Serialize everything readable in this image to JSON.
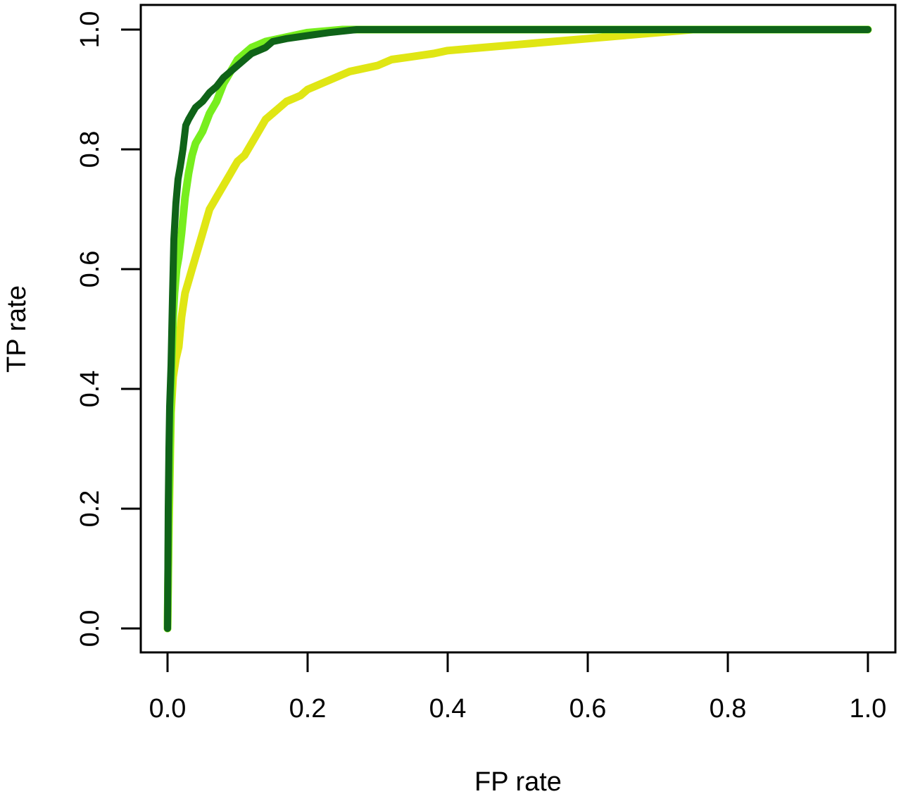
{
  "chart_data": {
    "type": "line",
    "title": "",
    "xlabel": "FP rate",
    "ylabel": "TP rate",
    "xlim": [
      0.0,
      1.0
    ],
    "ylim": [
      0.0,
      1.0
    ],
    "xticks": [
      0.0,
      0.2,
      0.4,
      0.6,
      0.8,
      1.0
    ],
    "yticks": [
      0.0,
      0.2,
      0.4,
      0.6,
      0.8,
      1.0
    ],
    "xtick_labels": [
      "0.0",
      "0.2",
      "0.4",
      "0.6",
      "0.8",
      "1.0"
    ],
    "ytick_labels": [
      "0.0",
      "0.2",
      "0.4",
      "0.6",
      "0.8",
      "1.0"
    ],
    "grid": false,
    "legend": "none",
    "series": [
      {
        "color": "#e0e614",
        "x": [
          0.0,
          0.002,
          0.005,
          0.008,
          0.012,
          0.016,
          0.02,
          0.025,
          0.03,
          0.035,
          0.04,
          0.045,
          0.05,
          0.055,
          0.06,
          0.065,
          0.07,
          0.08,
          0.09,
          0.095,
          0.1,
          0.11,
          0.12,
          0.13,
          0.14,
          0.15,
          0.16,
          0.17,
          0.18,
          0.19,
          0.2,
          0.22,
          0.24,
          0.26,
          0.28,
          0.3,
          0.32,
          0.35,
          0.38,
          0.4,
          0.45,
          0.5,
          0.55,
          0.6,
          0.65,
          0.7,
          0.75,
          0.8,
          0.9,
          1.0
        ],
        "y": [
          0.0,
          0.17,
          0.36,
          0.42,
          0.45,
          0.47,
          0.52,
          0.56,
          0.58,
          0.6,
          0.62,
          0.64,
          0.66,
          0.68,
          0.7,
          0.71,
          0.72,
          0.74,
          0.76,
          0.77,
          0.78,
          0.79,
          0.81,
          0.83,
          0.85,
          0.86,
          0.87,
          0.88,
          0.885,
          0.89,
          0.9,
          0.91,
          0.92,
          0.93,
          0.935,
          0.94,
          0.95,
          0.955,
          0.96,
          0.965,
          0.97,
          0.975,
          0.98,
          0.985,
          0.99,
          0.995,
          1.0,
          1.0,
          1.0,
          1.0
        ]
      },
      {
        "color": "#77ee1e",
        "x": [
          0.0,
          0.002,
          0.004,
          0.006,
          0.008,
          0.01,
          0.013,
          0.016,
          0.02,
          0.025,
          0.03,
          0.035,
          0.04,
          0.05,
          0.06,
          0.07,
          0.08,
          0.09,
          0.1,
          0.11,
          0.12,
          0.13,
          0.14,
          0.16,
          0.18,
          0.2,
          0.25,
          0.3,
          0.4,
          0.5,
          0.6,
          0.7,
          0.8,
          1.0
        ],
        "y": [
          0.0,
          0.2,
          0.33,
          0.45,
          0.52,
          0.56,
          0.6,
          0.62,
          0.66,
          0.72,
          0.76,
          0.79,
          0.81,
          0.83,
          0.86,
          0.88,
          0.91,
          0.93,
          0.95,
          0.96,
          0.97,
          0.975,
          0.98,
          0.985,
          0.99,
          0.995,
          1.0,
          1.0,
          1.0,
          1.0,
          1.0,
          1.0,
          1.0,
          1.0
        ]
      },
      {
        "color": "#0f6318",
        "x": [
          0.0,
          0.001,
          0.002,
          0.003,
          0.005,
          0.007,
          0.009,
          0.012,
          0.015,
          0.018,
          0.022,
          0.026,
          0.03,
          0.035,
          0.04,
          0.05,
          0.06,
          0.07,
          0.08,
          0.09,
          0.1,
          0.11,
          0.12,
          0.13,
          0.14,
          0.15,
          0.17,
          0.2,
          0.23,
          0.27,
          0.3,
          0.4,
          0.5,
          0.6,
          0.7,
          0.8,
          0.9,
          1.0
        ],
        "y": [
          0.0,
          0.2,
          0.3,
          0.37,
          0.44,
          0.55,
          0.65,
          0.71,
          0.75,
          0.77,
          0.8,
          0.84,
          0.85,
          0.86,
          0.87,
          0.88,
          0.895,
          0.905,
          0.92,
          0.93,
          0.94,
          0.95,
          0.96,
          0.965,
          0.97,
          0.98,
          0.985,
          0.99,
          0.995,
          1.0,
          1.0,
          1.0,
          1.0,
          1.0,
          1.0,
          1.0,
          1.0,
          1.0
        ]
      }
    ]
  }
}
